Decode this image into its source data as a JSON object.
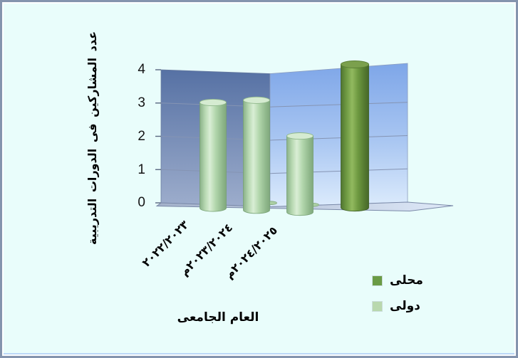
{
  "window": {
    "background_color": "#e9fdfb",
    "border_color": "#8494ae"
  },
  "chart_data": {
    "type": "bar",
    "style": "3d-cylinder",
    "categories": [
      "٢٠٢٢/٢٠٢٣",
      "٢٠٢٣/٢٠٢٤م",
      "٢٠٢٤/٢٠٢٥م"
    ],
    "series": [
      {
        "name": "محلى",
        "values": [
          0,
          0,
          4
        ],
        "color": "#6a9b45",
        "row": "back"
      },
      {
        "name": "دولى",
        "values": [
          3,
          3,
          2
        ],
        "color": "#b9d8ae",
        "row": "front"
      }
    ],
    "title": "",
    "xlabel": "العام الجامعى",
    "ylabel": "عدد المشاركين فى الدورات التدريبية",
    "ylim": [
      0,
      4
    ],
    "ytick_labels": [
      "4",
      "3",
      "2",
      "1",
      "0"
    ],
    "grid": true,
    "legend_position": "bottom-right",
    "wall_colors": {
      "left_wall_top": "#5671a4",
      "left_wall_bottom": "#9dadcc",
      "right_wall_top": "#7ea6e8",
      "right_wall_bottom": "#dcebfc",
      "floor": "#b4c1d9"
    }
  }
}
